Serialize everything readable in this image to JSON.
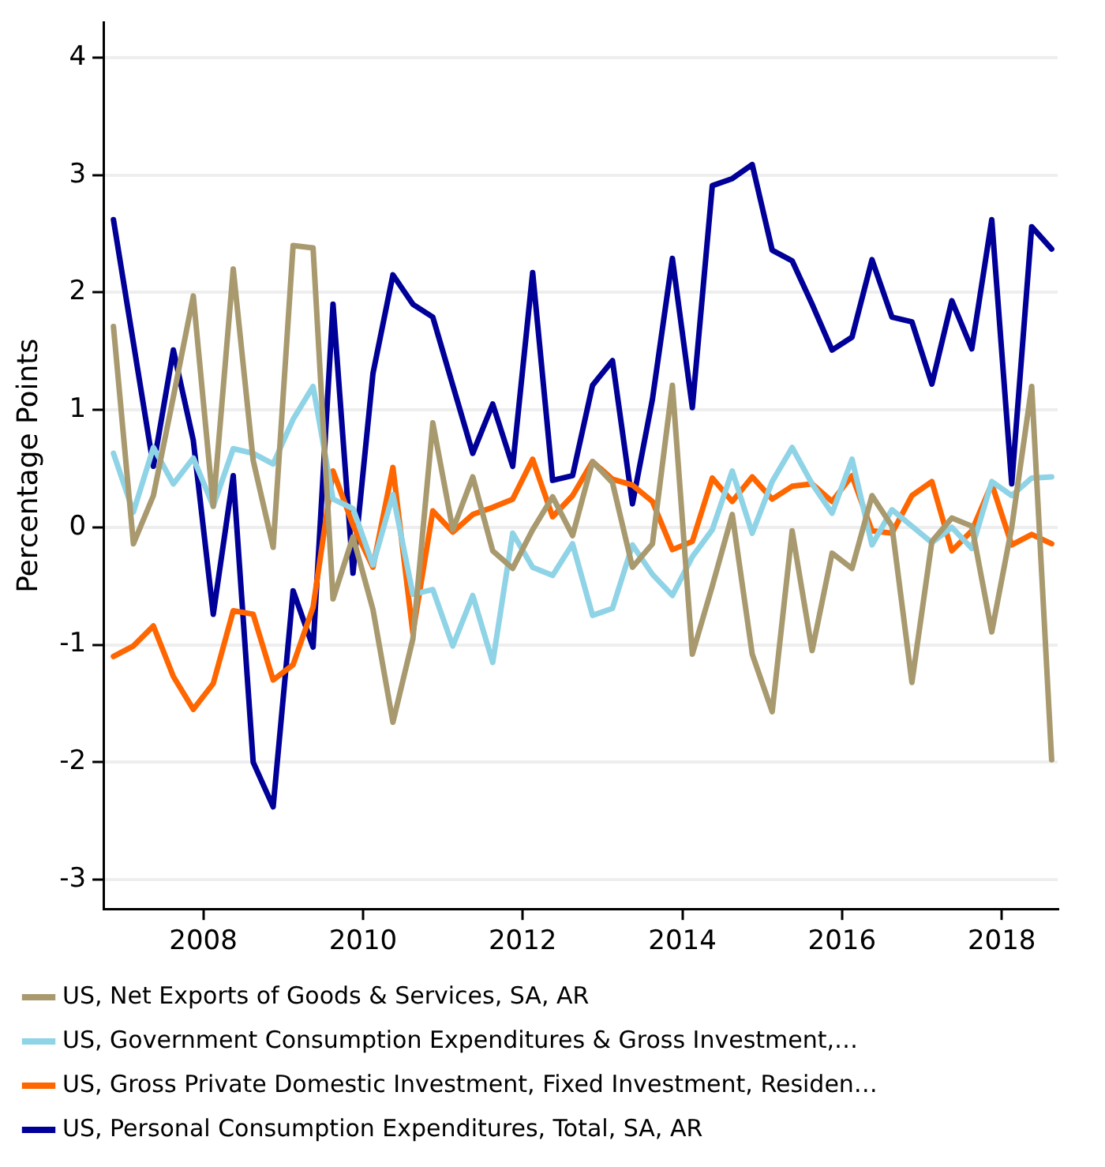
{
  "chart_data": {
    "type": "line",
    "ylabel": "Percentage Points",
    "x": [
      2006.875,
      2007.125,
      2007.375,
      2007.625,
      2007.875,
      2008.125,
      2008.375,
      2008.625,
      2008.875,
      2009.125,
      2009.375,
      2009.625,
      2009.875,
      2010.125,
      2010.375,
      2010.625,
      2010.875,
      2011.125,
      2011.375,
      2011.625,
      2011.875,
      2012.125,
      2012.375,
      2012.625,
      2012.875,
      2013.125,
      2013.375,
      2013.625,
      2013.875,
      2014.125,
      2014.375,
      2014.625,
      2014.875,
      2015.125,
      2015.375,
      2015.625,
      2015.875,
      2016.125,
      2016.375,
      2016.625,
      2016.875,
      2017.125,
      2017.375,
      2017.625,
      2017.875,
      2018.125,
      2018.375,
      2018.625
    ],
    "series": [
      {
        "name": "US, Net Exports of Goods & Services, SA, AR",
        "color": "#a89a6e",
        "values": [
          1.71,
          -0.14,
          0.27,
          1.11,
          1.97,
          0.18,
          2.2,
          0.57,
          -0.17,
          2.4,
          2.38,
          -0.61,
          -0.08,
          -0.7,
          -1.66,
          -0.95,
          0.89,
          -0.02,
          0.43,
          -0.2,
          -0.35,
          -0.02,
          0.26,
          -0.07,
          0.56,
          0.38,
          -0.34,
          -0.14,
          1.21,
          -1.08,
          -0.5,
          0.11,
          -1.08,
          -1.57,
          -0.03,
          -1.05,
          -0.22,
          -0.35,
          0.27,
          0.01,
          -1.32,
          -0.12,
          0.08,
          0.01,
          -0.89,
          0.0,
          1.2,
          -1.98
        ]
      },
      {
        "name": "US, Government Consumption Expenditures & Gross Investment,…",
        "color": "#8fd3e6",
        "values": [
          0.63,
          0.13,
          0.68,
          0.37,
          0.59,
          0.18,
          0.67,
          0.63,
          0.54,
          0.92,
          1.2,
          0.24,
          0.16,
          -0.32,
          0.28,
          -0.57,
          -0.53,
          -1.01,
          -0.58,
          -1.15,
          -0.05,
          -0.34,
          -0.41,
          -0.14,
          -0.75,
          -0.69,
          -0.15,
          -0.4,
          -0.58,
          -0.25,
          -0.02,
          0.48,
          -0.05,
          0.39,
          0.68,
          0.37,
          0.12,
          0.58,
          -0.15,
          0.15,
          0.01,
          -0.13,
          0.0,
          -0.18,
          0.39,
          0.27,
          0.42,
          0.43
        ]
      },
      {
        "name": "US, Gross Private Domestic Investment, Fixed Investment, Residen…",
        "color": "#ff6600",
        "values": [
          -1.1,
          -1.01,
          -0.84,
          -1.27,
          -1.55,
          -1.33,
          -0.71,
          -0.74,
          -1.3,
          -1.17,
          -0.68,
          0.48,
          0.02,
          -0.34,
          0.51,
          -0.9,
          0.14,
          -0.04,
          0.11,
          0.17,
          0.24,
          0.58,
          0.09,
          0.27,
          0.56,
          0.41,
          0.36,
          0.22,
          -0.19,
          -0.12,
          0.42,
          0.22,
          0.43,
          0.24,
          0.35,
          0.37,
          0.22,
          0.44,
          -0.03,
          -0.05,
          0.27,
          0.39,
          -0.2,
          -0.03,
          0.37,
          -0.15,
          -0.06,
          -0.14
        ]
      },
      {
        "name": "US, Personal Consumption Expenditures, Total, SA, AR",
        "color": "#000099",
        "values": [
          2.62,
          1.57,
          0.52,
          1.51,
          0.74,
          -0.74,
          0.44,
          -2.0,
          -2.38,
          -0.54,
          -1.02,
          1.9,
          -0.39,
          1.31,
          2.15,
          1.9,
          1.79,
          1.21,
          0.63,
          1.05,
          0.52,
          2.17,
          0.4,
          0.44,
          1.21,
          1.42,
          0.2,
          1.09,
          2.29,
          1.02,
          2.91,
          2.97,
          3.09,
          2.36,
          2.27,
          1.9,
          1.51,
          1.62,
          2.28,
          1.79,
          1.75,
          1.22,
          1.93,
          1.52,
          2.62,
          0.37,
          2.56,
          2.37
        ]
      }
    ],
    "xlim": [
      2006.75,
      2018.7
    ],
    "xticks": [
      2008,
      2010,
      2012,
      2014,
      2016,
      2018
    ],
    "ylim": [
      -3.25,
      4.3
    ],
    "yticks": [
      -3,
      -2,
      -1,
      0,
      1,
      2,
      3,
      4
    ],
    "grid": "y",
    "legend": "bottom",
    "marker": "none",
    "line_style": "solid"
  }
}
